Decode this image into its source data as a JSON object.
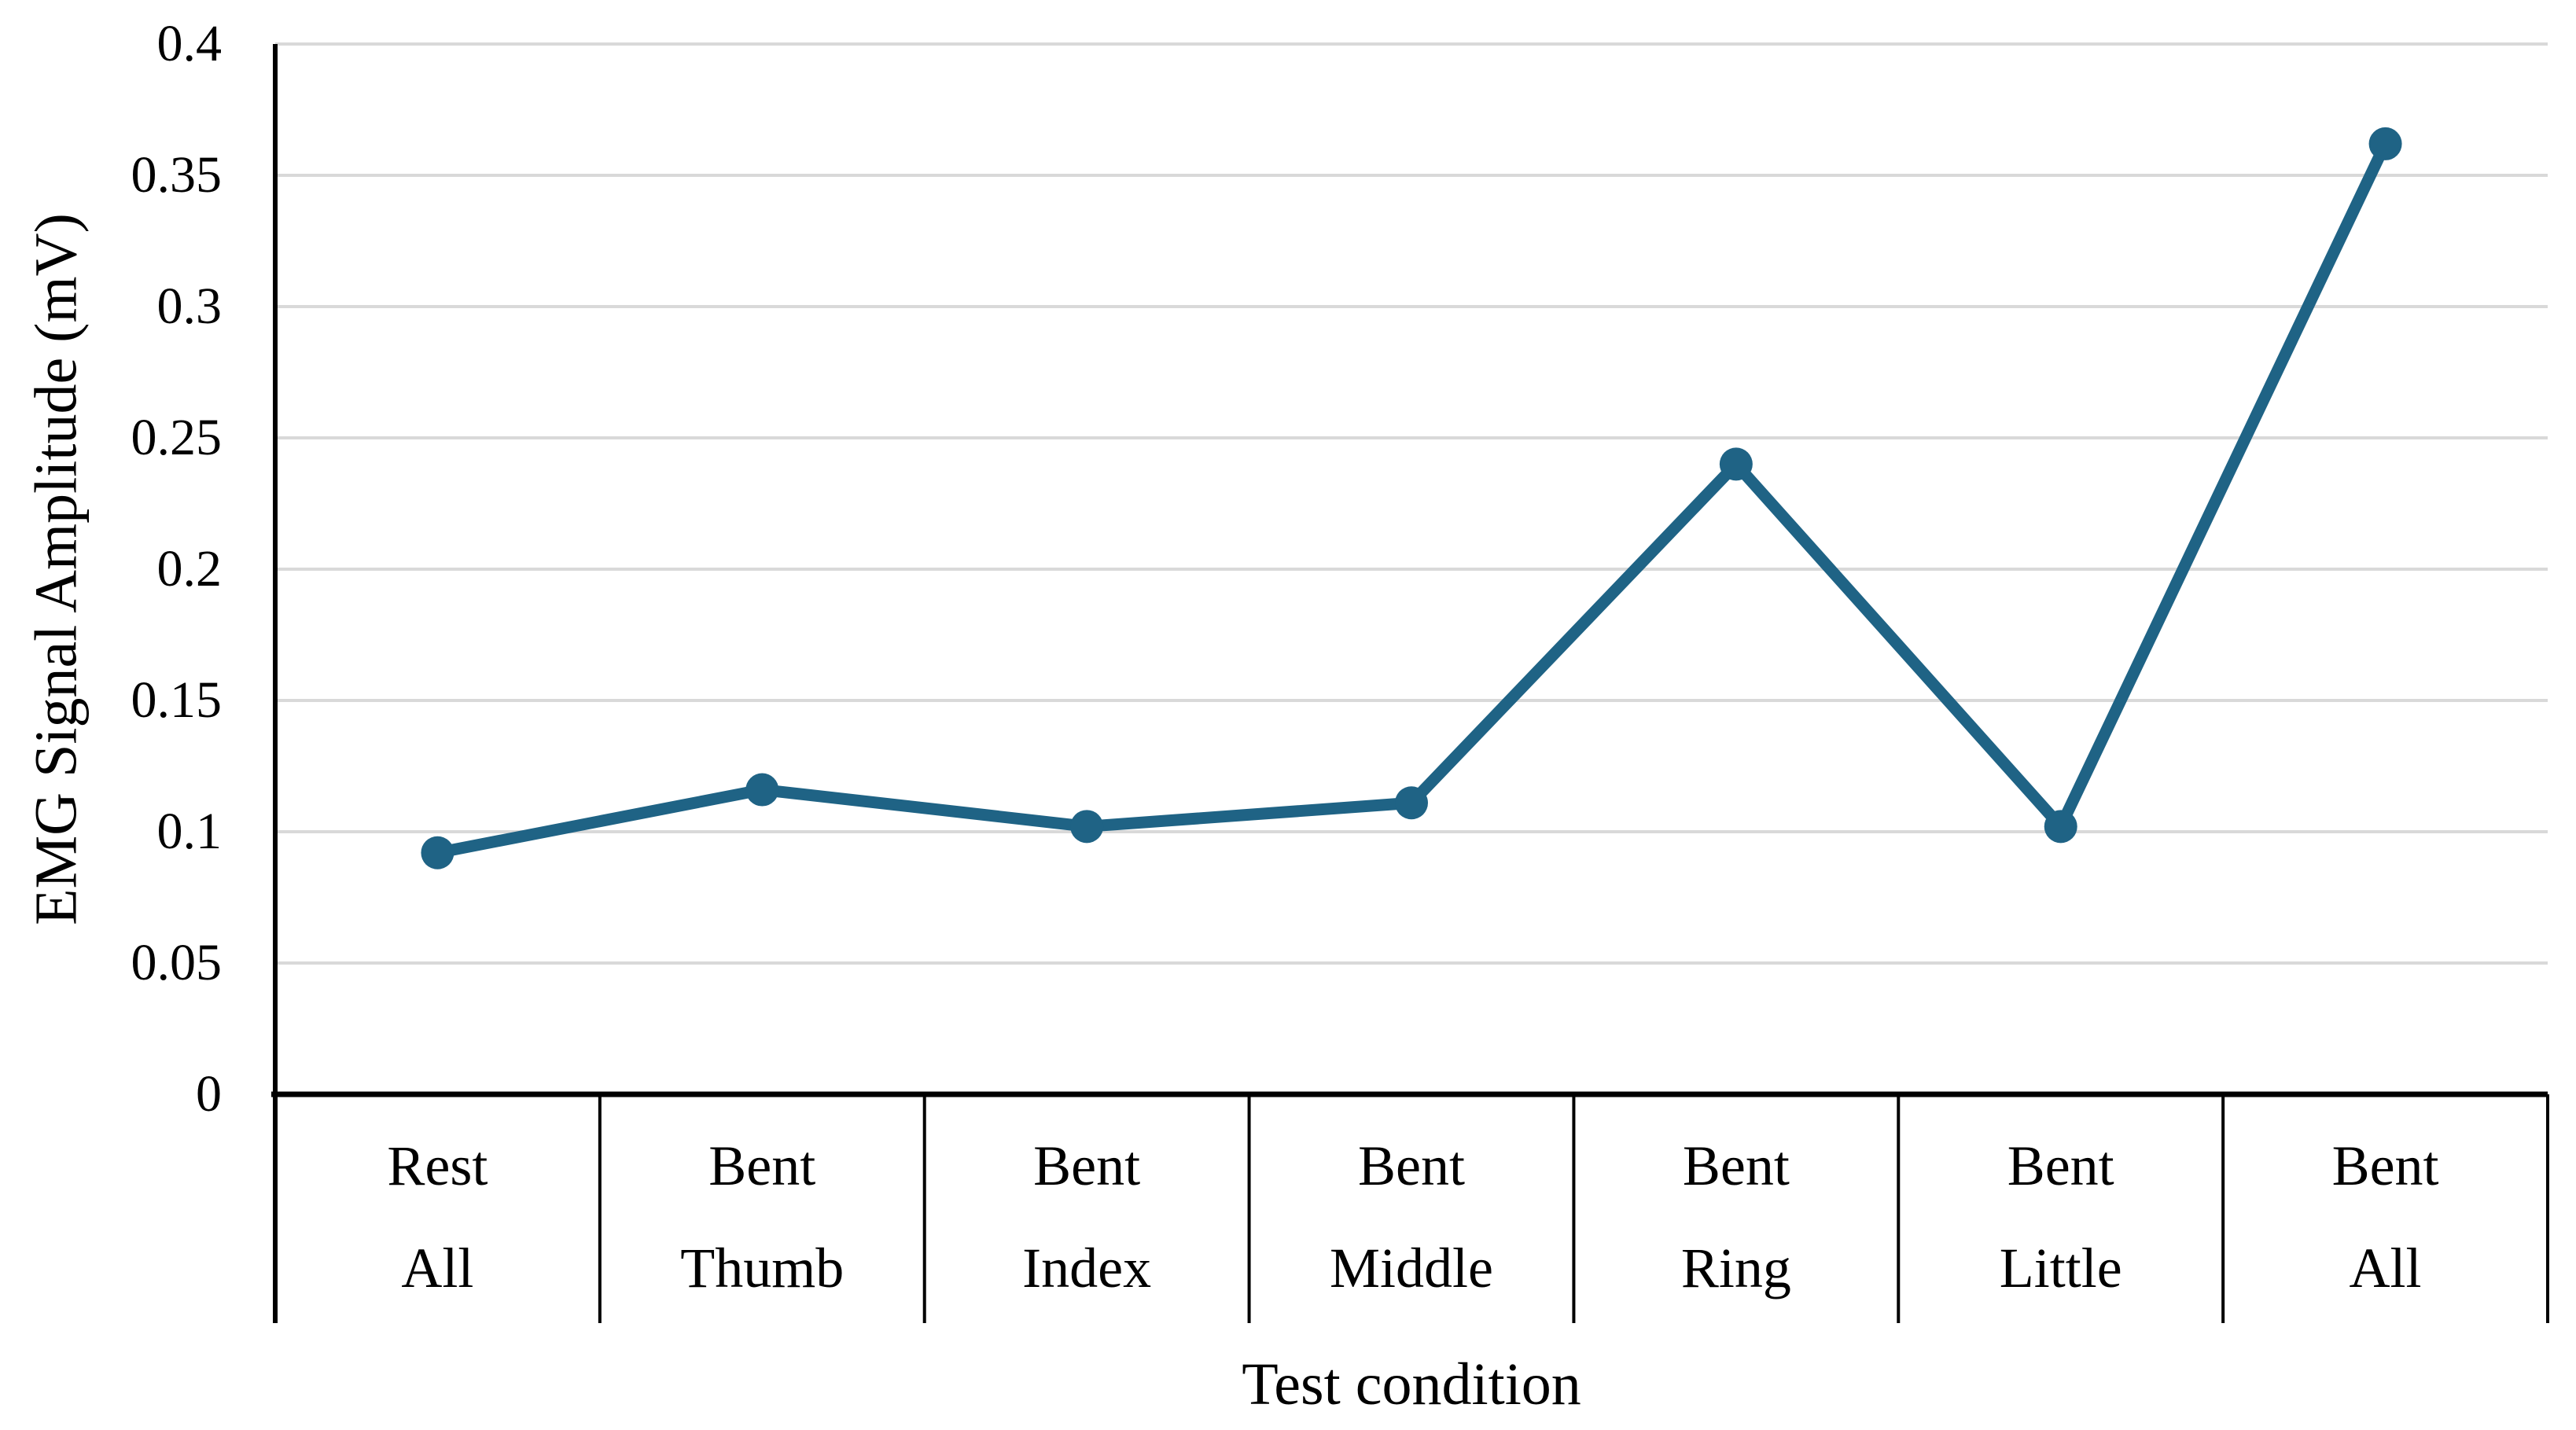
{
  "chart_data": {
    "type": "line",
    "title": "",
    "xlabel": "Test condition",
    "ylabel": "EMG Signal Amplitude (mV)",
    "categories": [
      "Rest All",
      "Bent Thumb",
      "Bent Index",
      "Bent Middle",
      "Bent Ring",
      "Bent Little",
      "Bent All"
    ],
    "category_lines": [
      [
        "Rest",
        "All"
      ],
      [
        "Bent",
        "Thumb"
      ],
      [
        "Bent",
        "Index"
      ],
      [
        "Bent",
        "Middle"
      ],
      [
        "Bent",
        "Ring"
      ],
      [
        "Bent",
        "Little"
      ],
      [
        "Bent",
        "All"
      ]
    ],
    "values": [
      0.092,
      0.116,
      0.102,
      0.111,
      0.24,
      0.102,
      0.362
    ],
    "ylim": [
      0,
      0.4
    ],
    "ytick_step": 0.05,
    "ytick_labels": [
      "0",
      "0.05",
      "0.1",
      "0.15",
      "0.2",
      "0.25",
      "0.3",
      "0.35",
      "0.4"
    ],
    "grid": true,
    "legend": "none",
    "series_color": "#1f6385",
    "gridline_color": "#d9d9d9",
    "axis_color": "#000000"
  }
}
